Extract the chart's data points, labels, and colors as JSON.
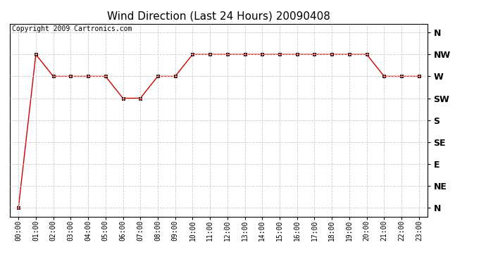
{
  "title": "Wind Direction (Last 24 Hours) 20090408",
  "copyright_text": "Copyright 2009 Cartronics.com",
  "x_labels": [
    "00:00",
    "01:00",
    "02:00",
    "03:00",
    "04:00",
    "05:00",
    "06:00",
    "07:00",
    "08:00",
    "09:00",
    "10:00",
    "11:00",
    "12:00",
    "13:00",
    "14:00",
    "15:00",
    "16:00",
    "17:00",
    "18:00",
    "19:00",
    "20:00",
    "21:00",
    "22:00",
    "23:00"
  ],
  "y_ticks": [
    0,
    1,
    2,
    3,
    4,
    5,
    6,
    7,
    8
  ],
  "y_labels": [
    "N",
    "NE",
    "E",
    "SE",
    "S",
    "SW",
    "W",
    "NW",
    "N"
  ],
  "data_hours": [
    0,
    1,
    2,
    3,
    4,
    5,
    6,
    7,
    8,
    9,
    10,
    11,
    12,
    13,
    14,
    15,
    16,
    17,
    18,
    19,
    20,
    21,
    22,
    23
  ],
  "data_values": [
    0,
    7,
    6,
    6,
    6,
    6,
    5,
    5,
    6,
    6,
    7,
    7,
    7,
    7,
    7,
    7,
    7,
    7,
    7,
    7,
    7,
    6,
    6,
    6
  ],
  "line_color": "#cc0000",
  "marker": "s",
  "marker_size": 3,
  "background_color": "#ffffff",
  "plot_bg_color": "#ffffff",
  "grid_color": "#cccccc",
  "title_fontsize": 11,
  "copyright_fontsize": 7,
  "tick_fontsize": 7,
  "y_label_fontsize": 9,
  "xlim": [
    -0.5,
    23.5
  ],
  "ylim": [
    -0.4,
    8.4
  ]
}
